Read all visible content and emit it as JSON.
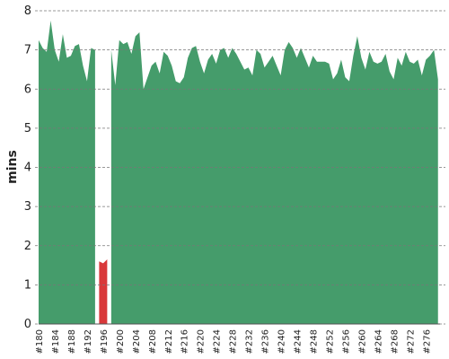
{
  "chart_data": {
    "type": "area",
    "ylabel": "mins",
    "categories": [
      "#180",
      null,
      null,
      null,
      "#184",
      null,
      null,
      null,
      "#188",
      null,
      null,
      null,
      "#192",
      null,
      null,
      null,
      "#196",
      null,
      null,
      null,
      "#200",
      null,
      null,
      null,
      "#204",
      null,
      null,
      null,
      "#208",
      null,
      null,
      null,
      "#212",
      null,
      null,
      null,
      "#216",
      null,
      null,
      null,
      "#220",
      null,
      null,
      null,
      "#224",
      null,
      null,
      null,
      "#228",
      null,
      null,
      null,
      "#232",
      null,
      null,
      null,
      "#236",
      null,
      null,
      null,
      "#240",
      null,
      null,
      null,
      "#244",
      null,
      null,
      null,
      "#248",
      null,
      null,
      null,
      "#252",
      null,
      null,
      null,
      "#256",
      null,
      null,
      null,
      "#260",
      null,
      null,
      null,
      "#264",
      null,
      null,
      null,
      "#268",
      null,
      null,
      null,
      "#272",
      null,
      null,
      null,
      "#276",
      null,
      null,
      null
    ],
    "series": [
      {
        "color": "#459c6b",
        "values": [
          7.25,
          7.05,
          6.95,
          7.75,
          7.0,
          6.7,
          7.4,
          6.8,
          6.85,
          7.1,
          7.15,
          6.6,
          6.2,
          7.05,
          7.0,
          null,
          null,
          null,
          7.0,
          6.1,
          7.25,
          7.15,
          7.2,
          6.9,
          7.35,
          7.45,
          6.0,
          6.3,
          6.6,
          6.7,
          6.4,
          6.95,
          6.85,
          6.6,
          6.2,
          6.15,
          6.3,
          6.8,
          7.05,
          7.1,
          6.7,
          6.4,
          6.75,
          6.9,
          6.65,
          7.0,
          7.05,
          6.8,
          7.05,
          6.9,
          6.7,
          6.5,
          6.55,
          6.35,
          7.0,
          6.9,
          6.55,
          6.7,
          6.85,
          6.6,
          6.35,
          7.0,
          7.2,
          7.05,
          6.8,
          7.05,
          6.8,
          6.55,
          6.85,
          6.7,
          6.7,
          6.7,
          6.65,
          6.25,
          6.4,
          6.75,
          6.3,
          6.2,
          6.85,
          7.35,
          6.8,
          6.5,
          6.95,
          6.7,
          6.65,
          6.7,
          6.9,
          6.45,
          6.25,
          6.8,
          6.6,
          6.95,
          6.7,
          6.65,
          6.75,
          6.35,
          6.75,
          6.85,
          7.0,
          6.25
        ]
      },
      {
        "color": "#d9383a",
        "values": [
          null,
          null,
          null,
          null,
          null,
          null,
          null,
          null,
          null,
          null,
          null,
          null,
          null,
          null,
          null,
          1.6,
          1.55,
          1.65,
          null,
          null,
          null,
          null,
          null,
          null,
          null,
          null,
          null,
          null,
          null,
          null,
          null,
          null,
          null,
          null,
          null,
          null,
          null,
          null,
          null,
          null,
          null,
          null,
          null,
          null,
          null,
          null,
          null,
          null,
          null,
          null,
          null,
          null,
          null,
          null,
          null,
          null,
          null,
          null,
          null,
          null,
          null,
          null,
          null,
          null,
          null,
          null,
          null,
          null,
          null,
          null,
          null,
          null,
          null,
          null,
          null,
          null,
          null,
          null,
          null,
          null,
          null,
          null,
          null,
          null,
          null,
          null,
          null,
          null,
          null,
          null,
          null,
          null,
          null,
          null,
          null,
          null,
          null,
          null,
          null,
          null
        ]
      }
    ],
    "ylim": [
      0,
      8
    ],
    "yticks": [
      0,
      1,
      2,
      3,
      4,
      5,
      6,
      7,
      8
    ],
    "grid": true
  }
}
